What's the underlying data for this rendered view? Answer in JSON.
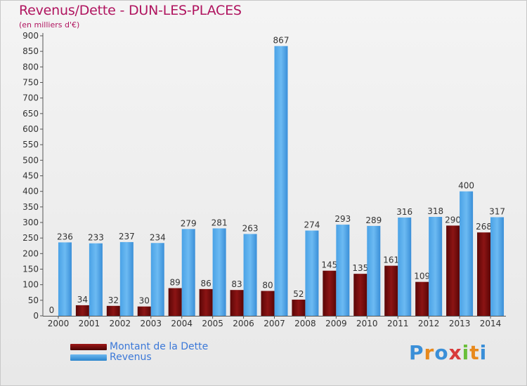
{
  "header": {
    "title": "Revenus/Dette - DUN-LES-PLACES",
    "subtitle": "(en milliers d'€)"
  },
  "chart_data": {
    "type": "bar",
    "categories": [
      "2000",
      "2001",
      "2002",
      "2003",
      "2004",
      "2005",
      "2006",
      "2007",
      "2008",
      "2009",
      "2010",
      "2011",
      "2012",
      "2013",
      "2014"
    ],
    "series": [
      {
        "name": "Montant de la Dette",
        "values": [
          0,
          34,
          32,
          30,
          89,
          86,
          83,
          80,
          52,
          145,
          135,
          161,
          109,
          290,
          268
        ],
        "color": "#7a0a0a"
      },
      {
        "name": "Revenus",
        "values": [
          236,
          233,
          237,
          234,
          279,
          281,
          263,
          867,
          274,
          293,
          289,
          316,
          318,
          400,
          317
        ],
        "color": "#4fa3e3"
      }
    ],
    "ylim": [
      0,
      900
    ],
    "yticks": [
      0,
      50,
      100,
      150,
      200,
      250,
      300,
      350,
      400,
      450,
      500,
      550,
      600,
      650,
      700,
      750,
      800,
      850,
      900
    ],
    "grid": false,
    "legend_position": "bottom-left"
  },
  "legend": {
    "items": [
      {
        "label": "Montant de la Dette",
        "color": "#7a0a0a"
      },
      {
        "label": "Revenus",
        "color": "#4fa3e3"
      }
    ]
  },
  "logo": {
    "text": "Proxiti",
    "letters": [
      "P",
      "r",
      "o",
      "x",
      "i",
      "t",
      "i"
    ],
    "colors": [
      "#3a8fd8",
      "#e8891c",
      "#3a8fd8",
      "#d83a3a",
      "#6abf3a",
      "#e8891c",
      "#3a8fd8"
    ]
  }
}
